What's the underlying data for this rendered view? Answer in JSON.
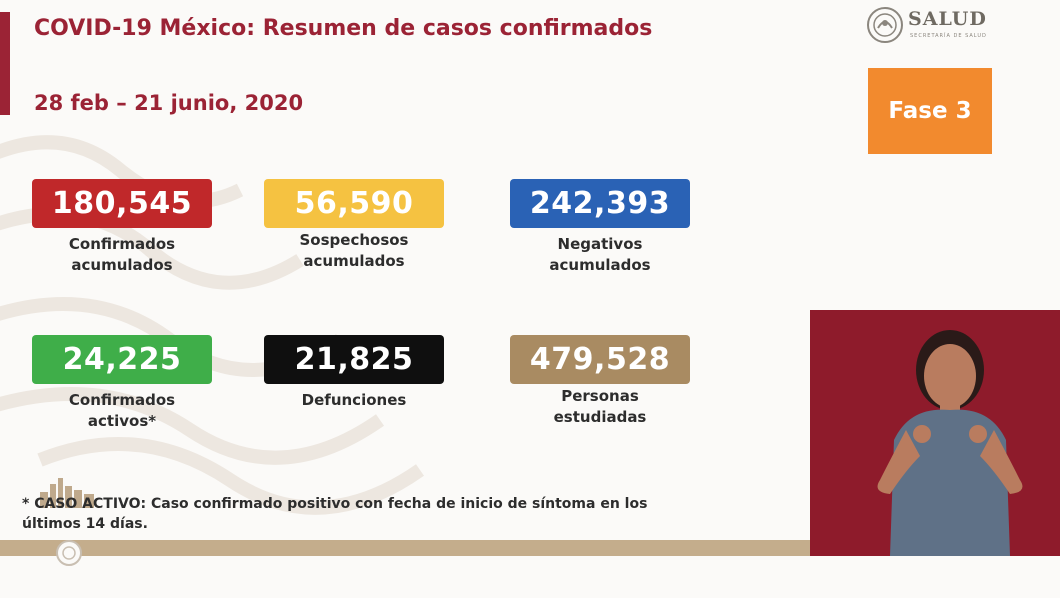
{
  "header": {
    "title": "COVID-19 México: Resumen de casos confirmados",
    "date_range": "28 feb – 21 junio, 2020"
  },
  "logo": {
    "name": "SALUD",
    "subtitle": "SECRETARÍA DE SALUD",
    "icon": "seal-icon"
  },
  "phase_button": {
    "label": "Fase 3",
    "color": "#f28a2e"
  },
  "stats": [
    {
      "value": "180,545",
      "label_line1": "Confirmados",
      "label_line2": "acumulados",
      "color": "#c0282a"
    },
    {
      "value": "56,590",
      "label_line1": "Sospechosos",
      "label_line2": "acumulados",
      "color": "#f5c241"
    },
    {
      "value": "242,393",
      "label_line1": "Negativos",
      "label_line2": "acumulados",
      "color": "#2a62b5"
    },
    {
      "value": "24,225",
      "label_line1": "Confirmados",
      "label_line2": "activos*",
      "color": "#3fae49"
    },
    {
      "value": "21,825",
      "label_line1": "Defunciones",
      "label_line2": "",
      "color": "#0f0f0f"
    },
    {
      "value": "479,528",
      "label_line1": "Personas",
      "label_line2": "estudiadas",
      "color": "#a98b62"
    }
  ],
  "footnote": {
    "line1": "* CASO ACTIVO: Caso confirmado positivo con fecha de inicio de síntoma en los",
    "line2": "últimos 14 días."
  },
  "colors": {
    "brand": "#9b2335",
    "background": "#fbfaf8",
    "band": "#c4ad8c",
    "interpreter_bg": "#8e1b2b"
  }
}
